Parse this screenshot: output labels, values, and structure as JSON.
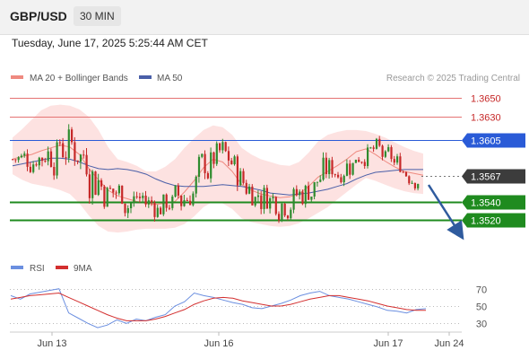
{
  "header": {
    "pair": "GBP/USD",
    "timeframe": "30 MIN",
    "datetime": "Tuesday, June 17, 2025 5:25:44 AM CET"
  },
  "legend": {
    "ma20_label": "MA 20 + Bollinger Bands",
    "ma50_label": "MA 50",
    "credit": "Research © 2025 Trading Central",
    "rsi_label": "RSI",
    "rsi_ma_label": "9MA"
  },
  "colors": {
    "ma20": "#ef8a80",
    "bollinger_fill": "#fde0df",
    "ma50": "#4a5fa8",
    "bull_candle": "#2e8b2e",
    "bear_candle": "#c62828",
    "resistance": "#e57373",
    "pivot": "#2a5bd7",
    "support": "#1f8b1f",
    "current": "#3c3c3c",
    "forecast_arrow": "#2f5b9e",
    "rsi": "#6b8fe0",
    "rsi_ma": "#d32f2f"
  },
  "chart_data": [
    {
      "type": "candlestick",
      "ylim": [
        1.3487,
        1.3678
      ],
      "x_labels": [
        "Jun 13",
        "Jun 16",
        "Jun 17",
        "Jun 24"
      ],
      "levels": [
        {
          "value": 1.365,
          "label": "1.3650",
          "kind": "resistance"
        },
        {
          "value": 1.363,
          "label": "1.3630",
          "kind": "resistance"
        },
        {
          "value": 1.3605,
          "label": "1.3605",
          "kind": "pivot"
        },
        {
          "value": 1.3567,
          "label": "1.3567",
          "kind": "current"
        },
        {
          "value": 1.354,
          "label": "1.3540",
          "kind": "support"
        },
        {
          "value": 1.352,
          "label": "1.3520",
          "kind": "support"
        }
      ],
      "ma20": [
        1.3585,
        1.3588,
        1.359,
        1.3594,
        1.3597,
        1.36,
        1.3598,
        1.359,
        1.3575,
        1.3563,
        1.3552,
        1.3546,
        1.3543,
        1.354,
        1.3538,
        1.3537,
        1.3538,
        1.354,
        1.355,
        1.3562,
        1.3576,
        1.3585,
        1.3582,
        1.3572,
        1.3558,
        1.3552,
        1.3548,
        1.3546,
        1.3544,
        1.3545,
        1.3548,
        1.3556,
        1.3566,
        1.3572,
        1.3578,
        1.3585,
        1.3593,
        1.3596,
        1.359,
        1.3583,
        1.3577,
        1.3572,
        1.357,
        1.3568
      ],
      "bollinger_upper": [
        1.3608,
        1.3617,
        1.3627,
        1.3637,
        1.3642,
        1.3643,
        1.3642,
        1.3638,
        1.363,
        1.3616,
        1.3598,
        1.3585,
        1.3582,
        1.3578,
        1.3572,
        1.3572,
        1.3577,
        1.3585,
        1.3597,
        1.3607,
        1.3616,
        1.3621,
        1.3619,
        1.3611,
        1.3597,
        1.359,
        1.3585,
        1.3582,
        1.3579,
        1.3578,
        1.3582,
        1.3592,
        1.3604,
        1.3611,
        1.3614,
        1.3616,
        1.3616,
        1.3615,
        1.3612,
        1.3608,
        1.3603,
        1.3598,
        1.3594,
        1.3591
      ],
      "bollinger_lower": [
        1.3569,
        1.3563,
        1.3559,
        1.3557,
        1.3555,
        1.3552,
        1.3548,
        1.3538,
        1.3525,
        1.3514,
        1.3508,
        1.3507,
        1.3508,
        1.351,
        1.3511,
        1.3511,
        1.3511,
        1.3512,
        1.3516,
        1.3524,
        1.3534,
        1.354,
        1.3538,
        1.3532,
        1.3522,
        1.3518,
        1.3516,
        1.3514,
        1.3513,
        1.3514,
        1.3517,
        1.3522,
        1.3528,
        1.3534,
        1.3542,
        1.355,
        1.3558,
        1.3565,
        1.3562,
        1.3558,
        1.3554,
        1.3551,
        1.3549,
        1.3548
      ],
      "ma50": [
        1.3578,
        1.358,
        1.3582,
        1.3584,
        1.3586,
        1.3586,
        1.3585,
        1.3582,
        1.3578,
        1.3575,
        1.3574,
        1.3575,
        1.3574,
        1.3572,
        1.3569,
        1.3564,
        1.356,
        1.3557,
        1.3556,
        1.3556,
        1.3556,
        1.3557,
        1.3558,
        1.3557,
        1.3556,
        1.3554,
        1.3552,
        1.3549,
        1.3548,
        1.3547,
        1.3548,
        1.3549,
        1.3551,
        1.3553,
        1.3556,
        1.3559,
        1.3564,
        1.3568,
        1.3571,
        1.3572,
        1.3573,
        1.3574,
        1.3574,
        1.3574
      ]
    },
    {
      "type": "line",
      "title": "RSI",
      "ylim": [
        22,
        78
      ],
      "y_ticks": [
        30,
        50,
        70
      ],
      "series": [
        {
          "name": "RSI",
          "values": [
            62,
            58,
            64,
            66,
            68,
            70,
            42,
            36,
            30,
            25,
            28,
            34,
            30,
            35,
            33,
            37,
            40,
            50,
            55,
            65,
            62,
            60,
            57,
            54,
            52,
            48,
            47,
            50,
            53,
            57,
            62,
            65,
            67,
            62,
            60,
            58,
            55,
            52,
            49,
            45,
            44,
            42,
            46,
            47
          ]
        },
        {
          "name": "9MA",
          "values": [
            58,
            60,
            62,
            63,
            64,
            65,
            60,
            55,
            50,
            45,
            40,
            36,
            33,
            33,
            33,
            35,
            38,
            42,
            46,
            52,
            56,
            59,
            60,
            59,
            56,
            54,
            52,
            50,
            50,
            52,
            55,
            58,
            60,
            62,
            62,
            60,
            58,
            56,
            53,
            50,
            48,
            46,
            45,
            45
          ]
        }
      ]
    }
  ]
}
